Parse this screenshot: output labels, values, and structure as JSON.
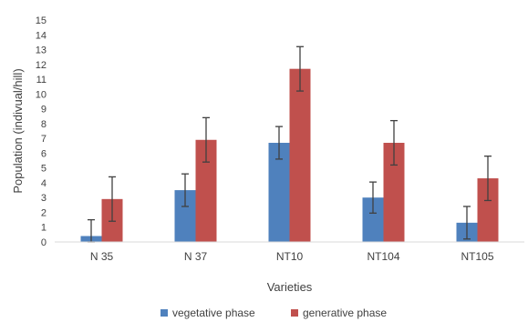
{
  "chart_data": {
    "type": "bar",
    "title": "",
    "xlabel": "Varieties",
    "ylabel": "Population (indivual/hill)",
    "ylim": [
      0,
      15
    ],
    "yticks": [
      0,
      1,
      2,
      3,
      4,
      5,
      6,
      7,
      8,
      9,
      10,
      11,
      12,
      13,
      14,
      15
    ],
    "categories": [
      "N 35",
      "N 37",
      "NT10",
      "NT104",
      "NT105"
    ],
    "series": [
      {
        "name": "vegetative phase",
        "color": "#4f81bd",
        "values": [
          0.4,
          3.5,
          6.7,
          3.0,
          1.3
        ],
        "errors": [
          1.1,
          1.1,
          1.1,
          1.05,
          1.1
        ]
      },
      {
        "name": "generative phase",
        "color": "#c0504d",
        "values": [
          2.9,
          6.9,
          11.7,
          6.7,
          4.3
        ],
        "errors": [
          1.5,
          1.5,
          1.5,
          1.5,
          1.5
        ]
      }
    ],
    "grid": false,
    "legend": "bottom",
    "error_bar_color": "#404040"
  }
}
